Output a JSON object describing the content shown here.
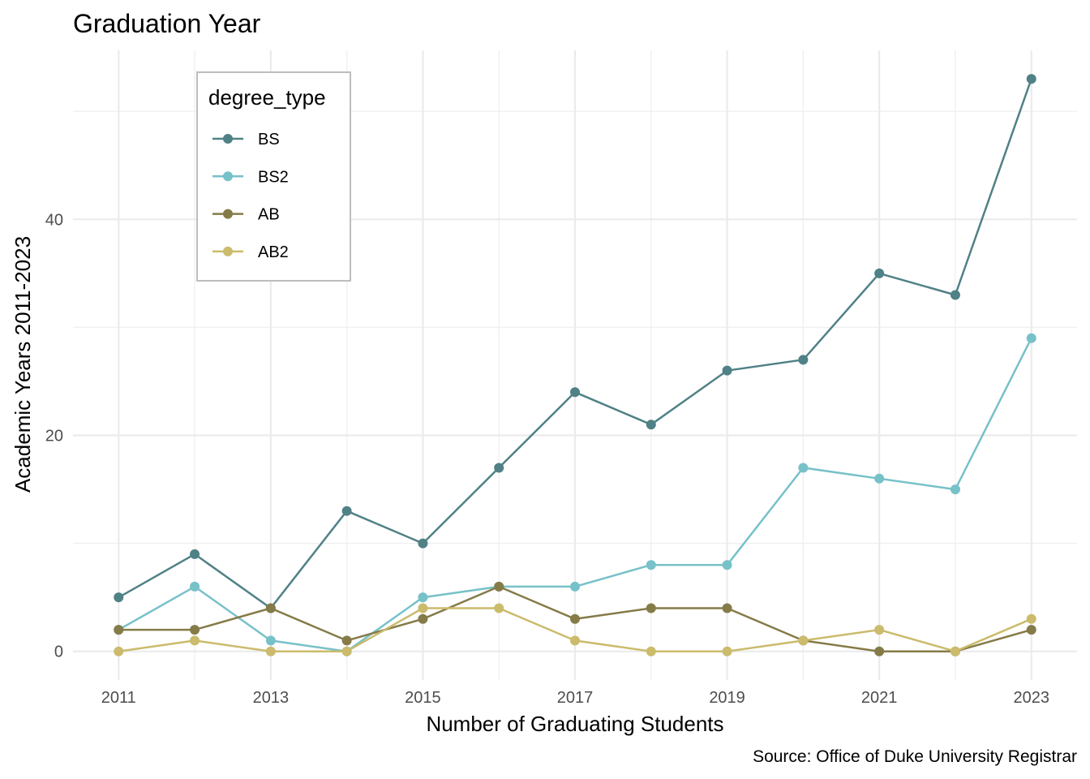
{
  "chart_data": {
    "type": "line",
    "title": "Graduation Year",
    "xlabel": "Number of Graduating Students",
    "ylabel": "Academic Years 2011-2023",
    "caption": "Source: Office of Duke University Registrar",
    "x": [
      2011,
      2012,
      2013,
      2014,
      2015,
      2016,
      2017,
      2018,
      2019,
      2020,
      2021,
      2022,
      2023
    ],
    "x_ticks": [
      2011,
      2013,
      2015,
      2017,
      2019,
      2021,
      2023
    ],
    "y_ticks": [
      0,
      20,
      40
    ],
    "xlim": [
      2010.4,
      2023.6
    ],
    "ylim": [
      -2.65,
      55.65
    ],
    "grid": true,
    "legend": {
      "title": "degree_type",
      "position": "top-left"
    },
    "series": [
      {
        "name": "BS",
        "color": "#4f8186",
        "values": [
          5,
          9,
          4,
          13,
          10,
          17,
          24,
          21,
          26,
          27,
          35,
          33,
          53
        ]
      },
      {
        "name": "BS2",
        "color": "#77c1c9",
        "values": [
          2,
          6,
          1,
          0,
          5,
          6,
          6,
          8,
          8,
          17,
          16,
          15,
          29
        ]
      },
      {
        "name": "AB",
        "color": "#857b48",
        "values": [
          2,
          2,
          4,
          1,
          3,
          6,
          3,
          4,
          4,
          1,
          0,
          0,
          2
        ]
      },
      {
        "name": "AB2",
        "color": "#cbbb6c",
        "values": [
          0,
          1,
          0,
          0,
          4,
          4,
          1,
          0,
          0,
          1,
          2,
          0,
          3
        ]
      }
    ]
  }
}
